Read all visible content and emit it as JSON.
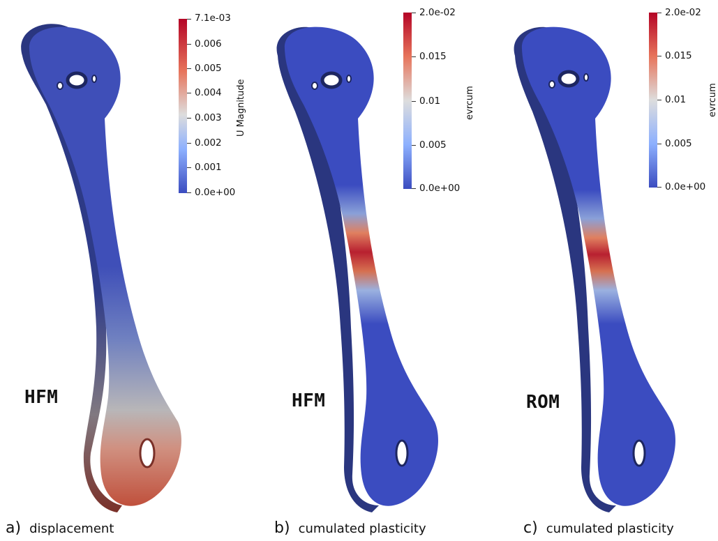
{
  "panels": [
    {
      "letter": "a)",
      "caption": "displacement",
      "model": "HFM",
      "colorbar": {
        "title": "U Magnitude",
        "ticks": [
          "7.1e-03",
          "0.006",
          "0.005",
          "0.004",
          "0.003",
          "0.002",
          "0.001",
          "0.0e+00"
        ]
      }
    },
    {
      "letter": "b)",
      "caption": "cumulated plasticity",
      "model": "HFM",
      "colorbar": {
        "title": "evrcum",
        "ticks": [
          "2.0e-02",
          "0.015",
          "0.01",
          "0.005",
          "0.0e+00"
        ]
      }
    },
    {
      "letter": "c)",
      "caption": "cumulated plasticity",
      "model": "ROM",
      "colorbar": {
        "title": "evrcum",
        "ticks": [
          "2.0e-02",
          "0.015",
          "0.01",
          "0.005",
          "0.0e+00"
        ]
      }
    }
  ],
  "colors": {
    "low": "#3b4cc0",
    "mid": "#dddddd",
    "high": "#b40426"
  }
}
